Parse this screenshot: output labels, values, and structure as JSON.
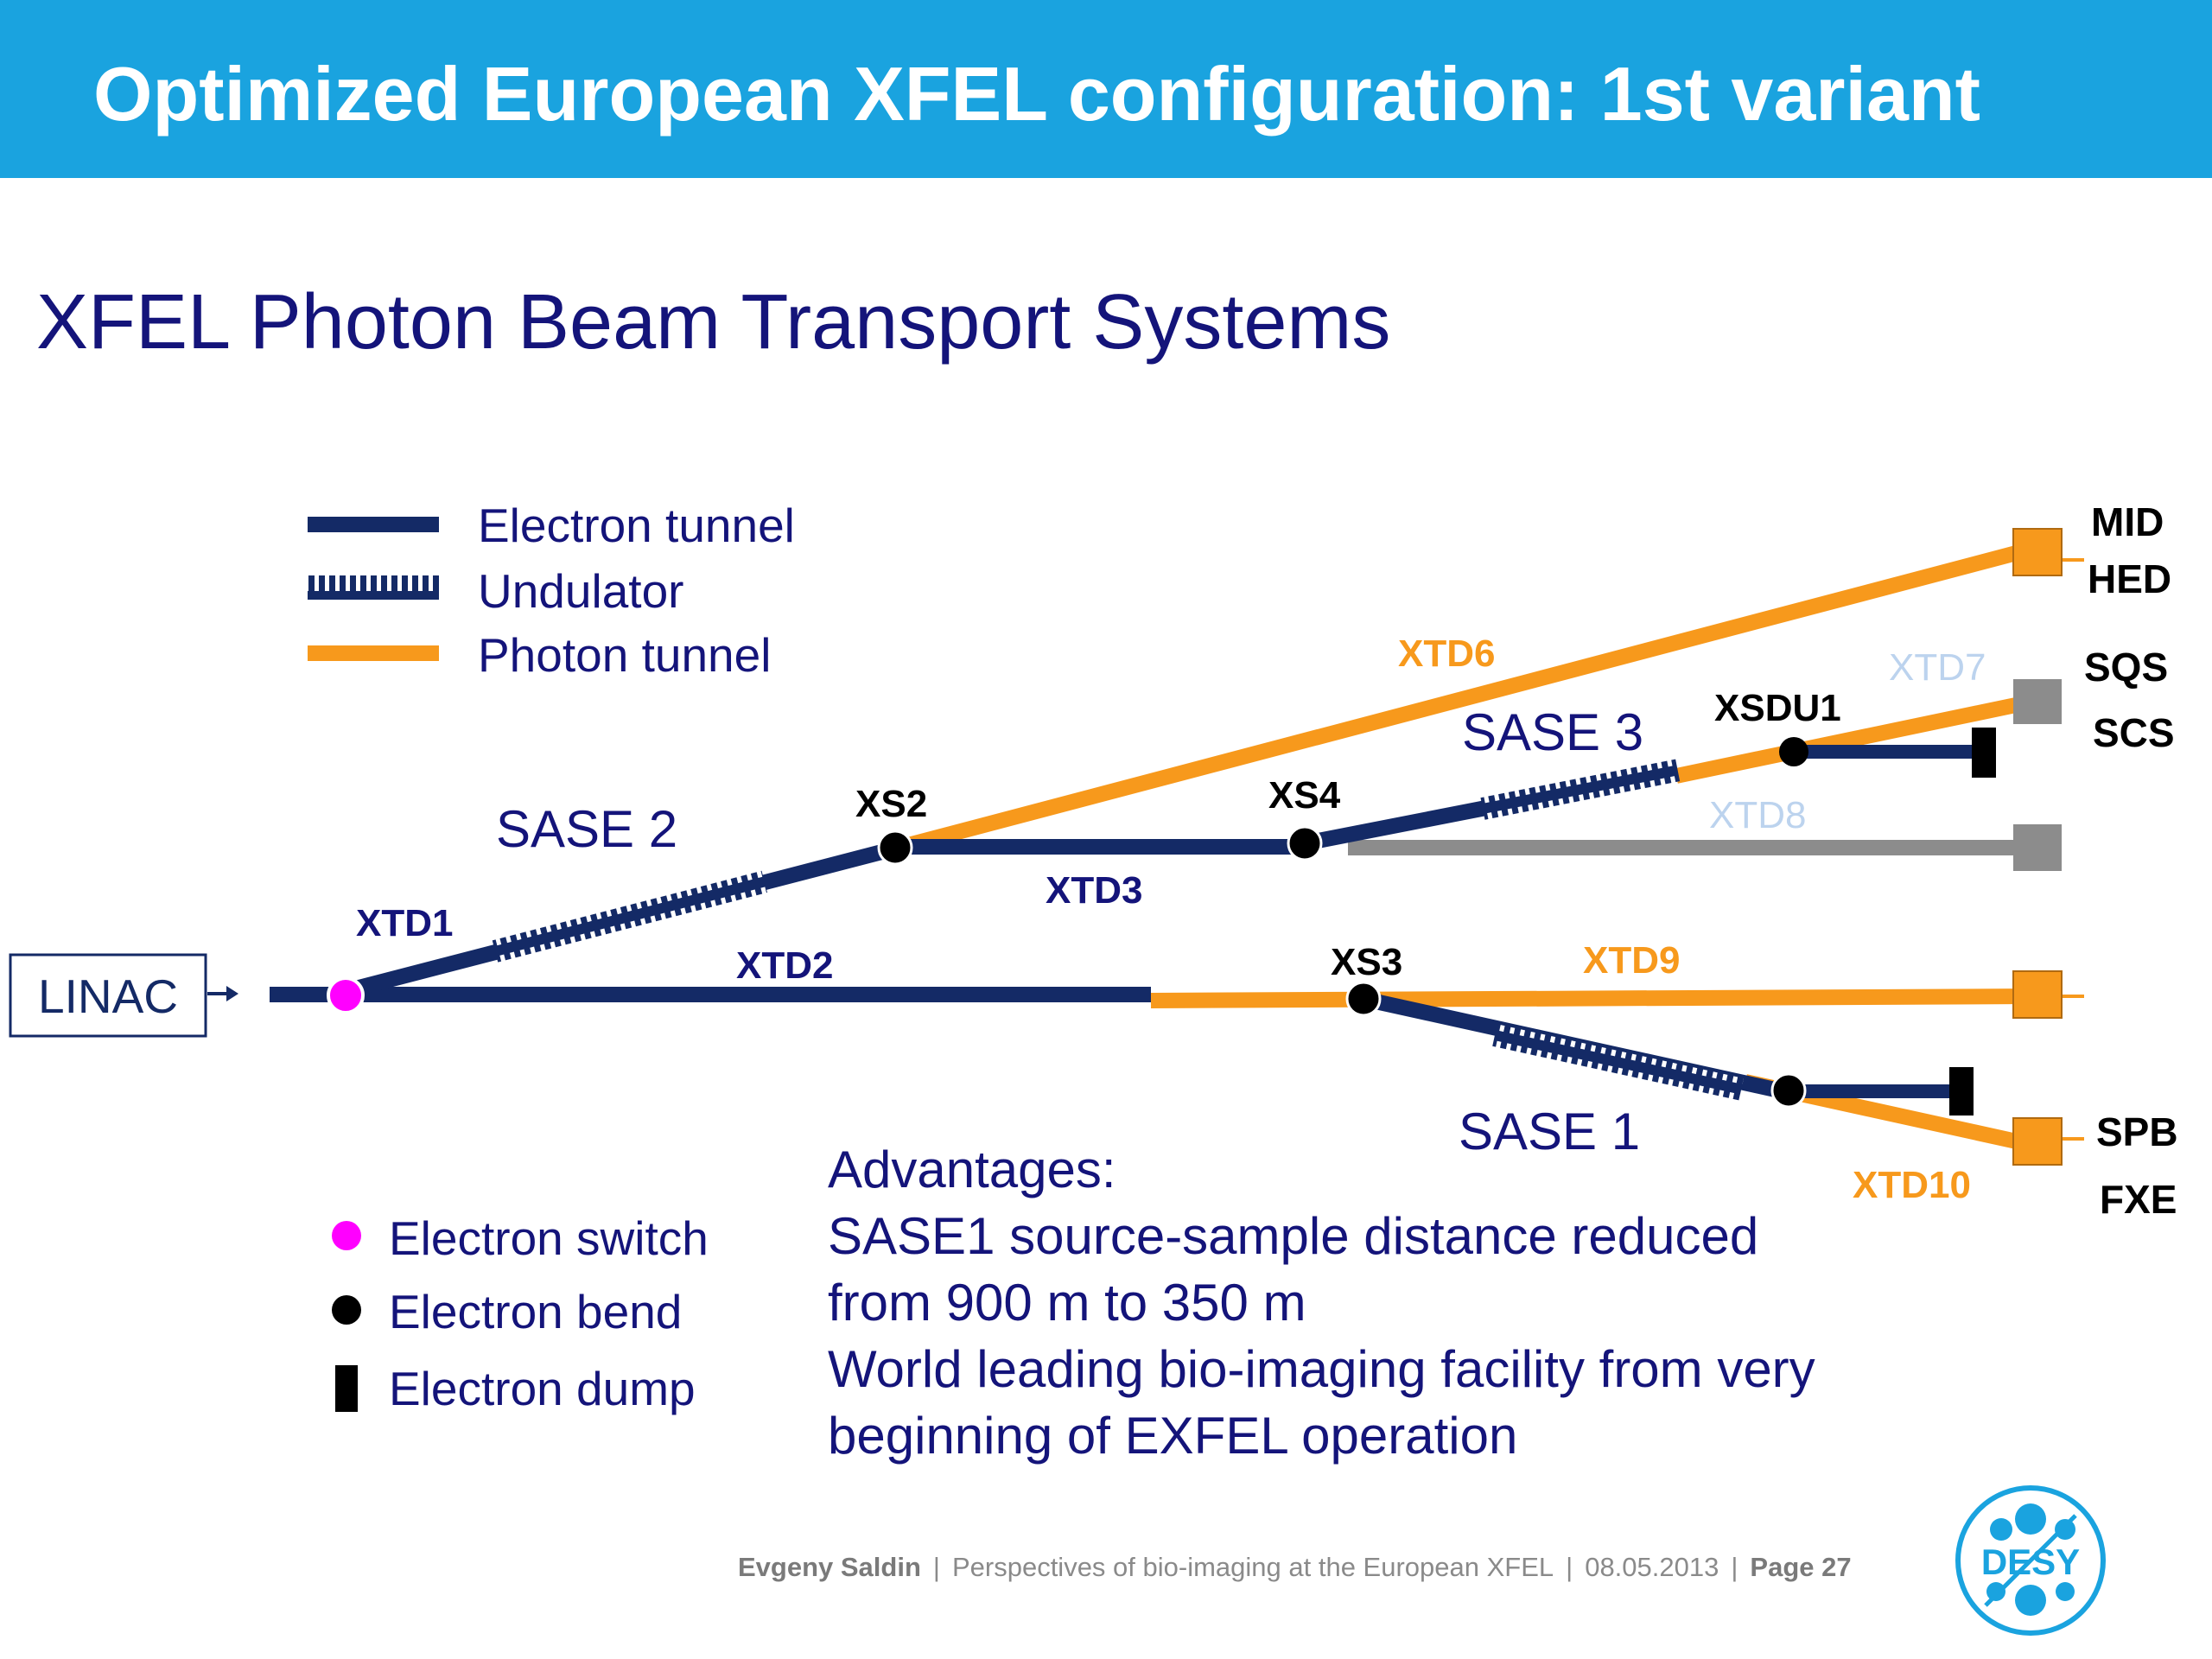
{
  "header": {
    "title": "Optimized European XFEL configuration: 1st variant"
  },
  "subtitle": "XFEL Photon Beam Transport Systems",
  "legend_lines": {
    "electron_tunnel": "Electron tunnel",
    "undulator": "Undulator",
    "photon_tunnel": "Photon tunnel"
  },
  "legend_symbols": {
    "electron_switch": "Electron switch",
    "electron_bend": "Electron bend",
    "electron_dump": "Electron dump"
  },
  "labels": {
    "linac": "LINAC",
    "xtd1": "XTD1",
    "xtd2": "XTD2",
    "xtd3": "XTD3",
    "xtd6": "XTD6",
    "xtd7": "XTD7",
    "xtd8": "XTD8",
    "xtd9": "XTD9",
    "xtd10": "XTD10",
    "xs2": "XS2",
    "xs3": "XS3",
    "xs4": "XS4",
    "xsdu1": "XSDU1",
    "sase1": "SASE 1",
    "sase2": "SASE 2",
    "sase3": "SASE 3"
  },
  "stations": {
    "mid": "MID",
    "hed": "HED",
    "sqs": "SQS",
    "scs": "SCS",
    "spb": "SPB",
    "fxe": "FXE"
  },
  "advantages": {
    "heading": "Advantages:",
    "line1": "SASE1 source-sample distance reduced",
    "line2": "from 900 m to 350 m",
    "line3": "World leading bio-imaging facility from very",
    "line4": "beginning of EXFEL operation"
  },
  "footer": {
    "author": "Evgeny Saldin",
    "talk": "Perspectives of bio-imaging at the European XFEL",
    "date": "08.05.2013",
    "page": "Page 27"
  },
  "logo": {
    "text": "DESY"
  },
  "colors": {
    "header": "#1aa3df",
    "electron": "#142a66",
    "photon": "#f7991c",
    "inactive": "#8c8c8c",
    "faded_label": "#bcd3ee",
    "switch": "#ff00ff",
    "text": "#14147a"
  }
}
